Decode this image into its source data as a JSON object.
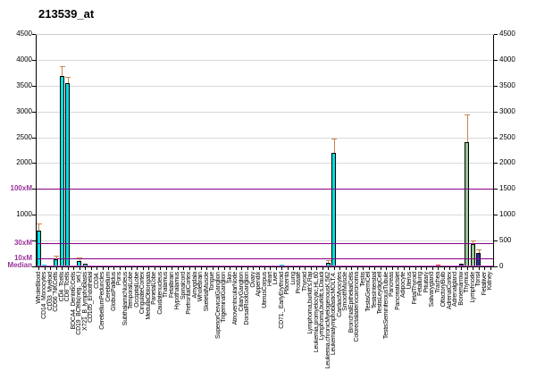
{
  "title": "213539_at",
  "colors": {
    "cyan": "#00e0e0",
    "green": "#97c697",
    "navy": "#30309c",
    "red": "#cc2a1e",
    "error_bar": "#c8834f",
    "ref_line": "#880088",
    "median_line": "#c94fc9",
    "grid": "#d9d9d9",
    "axis": "#000000",
    "frame_top": "#cccccc",
    "ref_label": "#993399",
    "bar_border": "#000000"
  },
  "chart_data": {
    "type": "bar",
    "title": "213539_at",
    "ylim": [
      0,
      4500
    ],
    "grid": true,
    "legend_position": "none",
    "right_axis_ticks": [
      0,
      500,
      1000,
      1500,
      2000,
      2500,
      3000,
      3500,
      4000,
      4500
    ],
    "left_axis_numeric_ticks": [
      1000,
      2000,
      2500,
      3000,
      3500,
      4000,
      4500
    ],
    "reference_lines": [
      {
        "label": "100xM",
        "value": 1500
      },
      {
        "label": "30xM",
        "value": 450
      },
      {
        "label": "10xM",
        "value": 150
      },
      {
        "label": "Median",
        "value": 15
      }
    ],
    "bar_default_color": "cyan",
    "bar_color_overrides": {
      "40": "navy",
      "41": "navy",
      "44": "navy",
      "45": "navy",
      "69": "red",
      "70": "red",
      "73": "navy",
      "74": "green",
      "75": "green",
      "76": "navy"
    },
    "categories": [
      "WholeBlood",
      "CD14_Monocytes",
      "CD33_Myeloid",
      "CD56_NKCells",
      "CD4_Tcells",
      "CD8_Tcells",
      "BDCA4_DentriticCells",
      "CD19_BCells(neg._sel.)",
      "X721_B_lymphoblasts",
      "CD105_Endothelial",
      "CD34.",
      "CerebellumPeduncles",
      "Cerebellum",
      "GlobusPallidus",
      "Pons",
      "SubthalamicNucleus",
      "TemporalLobe",
      "OccipitalLobe",
      "CingulateCortex",
      "MedullaOblongata",
      "ParietalLobe",
      "Caudatenucleus",
      "Thalamus",
      "Fetalbrain",
      "Hypothalamus",
      "Spinalcord",
      "PrefrontalCortex",
      "Amygdala",
      "Wholebrain",
      "SkeletalMuscle",
      "Tongue",
      "SuperiorCervicalGanglion",
      "TrigeminalGanglion",
      "Skin",
      "AtrioventricularNode",
      "CiliaryGanglion",
      "DorsalRootGanglion",
      "Ovary",
      "Appendix",
      "UterusCorpus",
      "Heart",
      "Liver",
      "CD71._EarlyErythroid",
      "Placenta",
      "Lung",
      "Prostate",
      "Thyroid",
      "Lymphoma,burkitt's,Raji",
      "Leukemia,promyelocytic,HL,60",
      "Lymphoma,burkitt,s,Daudi",
      "Leukemia,chronicMyelogenousK,562",
      "LeukemialymphoblasticMOLT,4.",
      "CardiacMyocytes",
      "SmoothMuscle",
      "BronchialEpithelialCells",
      "Colorectaladenocarcinoma",
      "Testis",
      "TestisGermCell",
      "TestisInterstial",
      "TestisLeydigCell",
      "TestisSeminiferousTubule",
      "Pancreas",
      "PancreaticIslet",
      "Adipocyte",
      "Uterus",
      "FetalThyroid",
      "Fetallung",
      "Pituitary",
      "Salivarygland",
      "Trachea",
      "OlfactoryBulb",
      "AdrenalCortex",
      "Adrenalgland",
      "Bonemarrow",
      "Thymus",
      "Lymphnode",
      "Tonsil",
      "Fetalliver",
      "Kidney"
    ],
    "values": [
      700,
      30,
      20,
      130,
      3690,
      3550,
      15,
      110,
      50,
      10,
      10,
      5,
      5,
      5,
      5,
      5,
      5,
      5,
      5,
      5,
      5,
      5,
      5,
      5,
      5,
      5,
      5,
      5,
      5,
      5,
      5,
      5,
      5,
      5,
      5,
      5,
      5,
      5,
      10,
      5,
      20,
      25,
      30,
      10,
      20,
      25,
      10,
      10,
      10,
      10,
      70,
      2190,
      10,
      10,
      10,
      10,
      15,
      10,
      10,
      10,
      10,
      10,
      10,
      10,
      10,
      10,
      10,
      10,
      10,
      30,
      25,
      10,
      15,
      45,
      2400,
      440,
      265,
      15,
      10
    ],
    "errors": {
      "0": 810,
      "3": 190,
      "4": 3860,
      "5": 3660,
      "7": 160,
      "50": 110,
      "51": 2450,
      "74": 2920,
      "75": 480,
      "76": 305
    }
  }
}
